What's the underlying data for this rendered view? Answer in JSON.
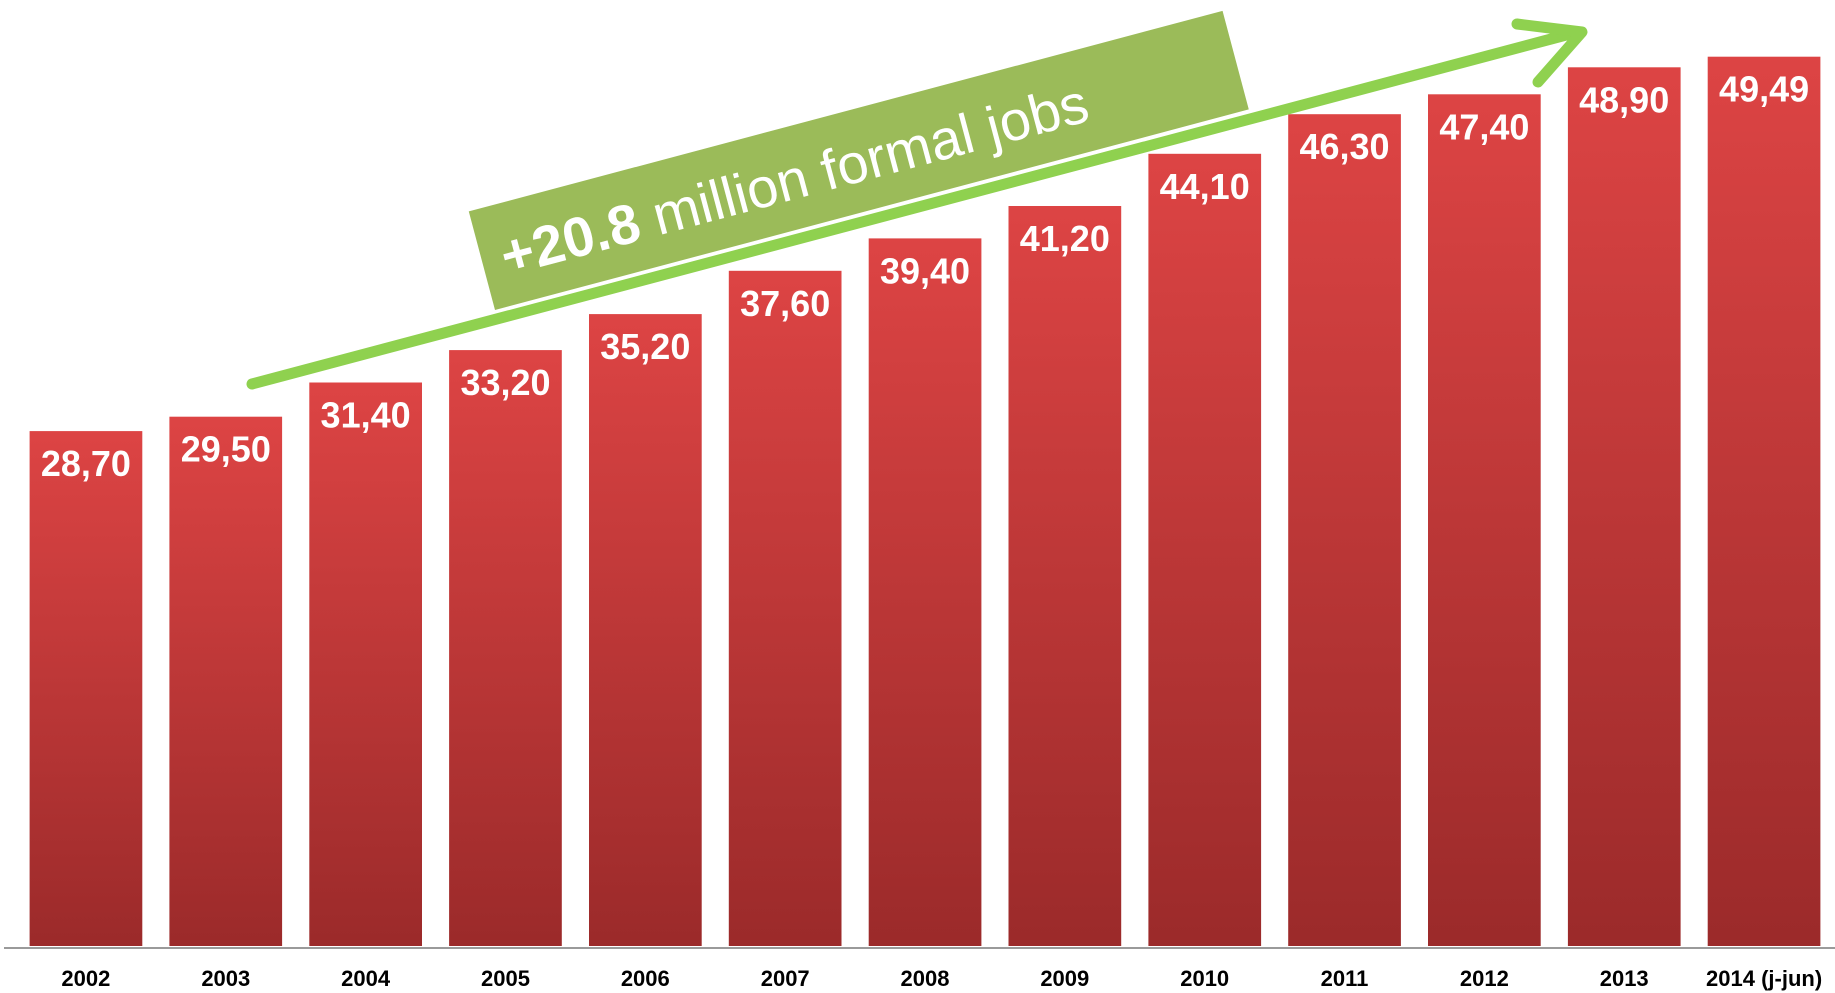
{
  "colors": {
    "bar_top": "#dd4444",
    "bar_bottom": "#9b2a2a",
    "bar_edge": "#ffffff",
    "arrow": "#8fd14f",
    "banner": "#9bbb59",
    "axis": "#9a9a9a"
  },
  "banner": {
    "strong": "+20.8",
    "rest": " million formal jobs"
  },
  "chart_data": {
    "type": "bar",
    "categories": [
      "2002",
      "2003",
      "2004",
      "2005",
      "2006",
      "2007",
      "2008",
      "2009",
      "2010",
      "2011",
      "2012",
      "2013",
      "2014 (j-jun)"
    ],
    "values": [
      28.7,
      29.5,
      31.4,
      33.2,
      35.2,
      37.6,
      39.4,
      41.2,
      44.1,
      46.3,
      47.4,
      48.9,
      49.49
    ],
    "data_labels": [
      "28,70",
      "29,50",
      "31,40",
      "33,20",
      "35,20",
      "37,60",
      "39,40",
      "41,20",
      "44,10",
      "46,30",
      "47,40",
      "48,90",
      "49,49"
    ],
    "ylim": [
      0,
      52
    ],
    "grid": false,
    "legend": "none",
    "annotation": "+20.8 million formal jobs"
  }
}
